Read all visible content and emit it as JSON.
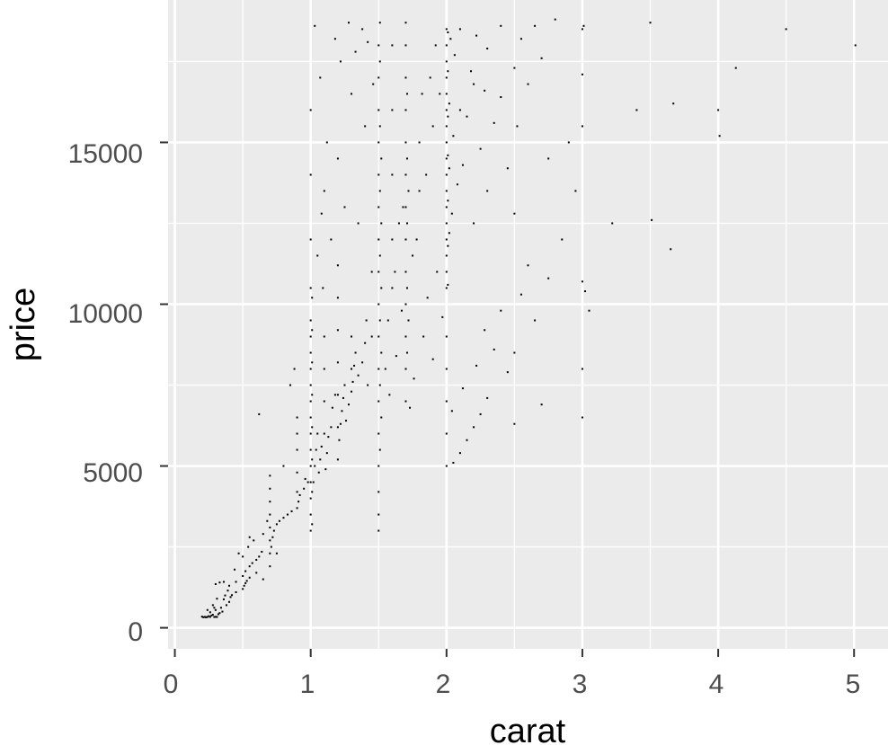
{
  "chart_data": {
    "type": "scatter",
    "title": "",
    "xlabel": "carat",
    "ylabel": "price",
    "xlim": [
      -0.05,
      5.25
    ],
    "ylim": [
      -650,
      19400
    ],
    "x_ticks": [
      0,
      1,
      2,
      3,
      4,
      5
    ],
    "x_tick_labels": [
      "0",
      "1",
      "2",
      "3",
      "4",
      "5"
    ],
    "y_ticks": [
      0,
      5000,
      10000,
      15000
    ],
    "y_tick_labels": [
      "0",
      "5000",
      "10000",
      "15000"
    ],
    "grid": true,
    "colors": {
      "panel": "#ebebeb",
      "grid": "#ffffff",
      "point": "#000000",
      "axis_text": "#4d4d4d"
    },
    "points": [
      [
        0.23,
        326
      ],
      [
        0.21,
        326
      ],
      [
        0.23,
        327
      ],
      [
        0.29,
        334
      ],
      [
        0.31,
        335
      ],
      [
        0.24,
        336
      ],
      [
        0.26,
        337
      ],
      [
        0.22,
        337
      ],
      [
        0.3,
        339
      ],
      [
        0.2,
        345
      ],
      [
        0.25,
        360
      ],
      [
        0.27,
        380
      ],
      [
        0.28,
        402
      ],
      [
        0.32,
        420
      ],
      [
        0.33,
        456
      ],
      [
        0.35,
        500
      ],
      [
        0.3,
        550
      ],
      [
        0.34,
        620
      ],
      [
        0.38,
        700
      ],
      [
        0.4,
        800
      ],
      [
        0.36,
        880
      ],
      [
        0.41,
        950
      ],
      [
        0.42,
        1010
      ],
      [
        0.45,
        1100
      ],
      [
        0.5,
        1200
      ],
      [
        0.51,
        1300
      ],
      [
        0.52,
        1380
      ],
      [
        0.53,
        1450
      ],
      [
        0.3,
        1350
      ],
      [
        0.33,
        1400
      ],
      [
        0.36,
        1420
      ],
      [
        0.4,
        1300
      ],
      [
        0.45,
        1420
      ],
      [
        0.31,
        900
      ],
      [
        0.28,
        700
      ],
      [
        0.24,
        550
      ],
      [
        0.26,
        480
      ],
      [
        0.29,
        620
      ],
      [
        0.37,
        1000
      ],
      [
        0.39,
        1150
      ],
      [
        0.5,
        1600
      ],
      [
        0.52,
        1750
      ],
      [
        0.55,
        1900
      ],
      [
        0.57,
        2000
      ],
      [
        0.6,
        2100
      ],
      [
        0.62,
        2200
      ],
      [
        0.64,
        2350
      ],
      [
        0.5,
        2200
      ],
      [
        0.54,
        2500
      ],
      [
        0.58,
        2700
      ],
      [
        0.55,
        1550
      ],
      [
        0.6,
        1700
      ],
      [
        0.65,
        1500
      ],
      [
        0.7,
        1900
      ],
      [
        0.7,
        2300
      ],
      [
        0.7,
        2700
      ],
      [
        0.7,
        3100
      ],
      [
        0.7,
        3500
      ],
      [
        0.7,
        3900
      ],
      [
        0.7,
        4300
      ],
      [
        0.7,
        4700
      ],
      [
        0.71,
        2500
      ],
      [
        0.72,
        2800
      ],
      [
        0.73,
        3000
      ],
      [
        0.75,
        3200
      ],
      [
        0.77,
        3300
      ],
      [
        0.8,
        3400
      ],
      [
        0.83,
        3500
      ],
      [
        0.86,
        3600
      ],
      [
        0.9,
        3700
      ],
      [
        0.9,
        4200
      ],
      [
        0.9,
        4800
      ],
      [
        0.9,
        5500
      ],
      [
        0.9,
        6000
      ],
      [
        0.9,
        6500
      ],
      [
        0.91,
        3900
      ],
      [
        0.92,
        4100
      ],
      [
        0.95,
        4300
      ],
      [
        0.96,
        4600
      ],
      [
        0.98,
        4500
      ],
      [
        0.62,
        6600
      ],
      [
        0.8,
        5000
      ],
      [
        0.85,
        7500
      ],
      [
        0.88,
        8000
      ],
      [
        0.55,
        2800
      ],
      [
        0.47,
        2300
      ],
      [
        0.44,
        1800
      ],
      [
        0.65,
        2900
      ],
      [
        0.68,
        3300
      ],
      [
        0.75,
        2300
      ],
      [
        1.0,
        3000
      ],
      [
        1.0,
        3500
      ],
      [
        1.0,
        4000
      ],
      [
        1.0,
        4500
      ],
      [
        1.0,
        5000
      ],
      [
        1.0,
        5500
      ],
      [
        1.0,
        6000
      ],
      [
        1.0,
        6500
      ],
      [
        1.0,
        7000
      ],
      [
        1.0,
        7500
      ],
      [
        1.0,
        8000
      ],
      [
        1.0,
        8500
      ],
      [
        1.0,
        9000
      ],
      [
        1.0,
        9500
      ],
      [
        1.0,
        10500
      ],
      [
        1.0,
        12000
      ],
      [
        1.0,
        14000
      ],
      [
        1.0,
        16000
      ],
      [
        1.01,
        3200
      ],
      [
        1.01,
        4200
      ],
      [
        1.01,
        5200
      ],
      [
        1.01,
        6200
      ],
      [
        1.01,
        7200
      ],
      [
        1.01,
        8200
      ],
      [
        1.01,
        9200
      ],
      [
        1.01,
        10200
      ],
      [
        1.02,
        4500
      ],
      [
        1.03,
        5000
      ],
      [
        1.04,
        5500
      ],
      [
        1.05,
        6000
      ],
      [
        1.06,
        4800
      ],
      [
        1.07,
        5200
      ],
      [
        1.08,
        5600
      ],
      [
        1.1,
        6000
      ],
      [
        1.1,
        7000
      ],
      [
        1.1,
        8000
      ],
      [
        1.1,
        9000
      ],
      [
        1.11,
        4900
      ],
      [
        1.12,
        5400
      ],
      [
        1.13,
        5900
      ],
      [
        1.15,
        6200
      ],
      [
        1.16,
        6800
      ],
      [
        1.18,
        7200
      ],
      [
        1.2,
        5200
      ],
      [
        1.2,
        6200
      ],
      [
        1.2,
        7200
      ],
      [
        1.2,
        8200
      ],
      [
        1.2,
        9200
      ],
      [
        1.2,
        10200
      ],
      [
        1.2,
        11200
      ],
      [
        1.21,
        5800
      ],
      [
        1.22,
        6300
      ],
      [
        1.23,
        6700
      ],
      [
        1.24,
        7100
      ],
      [
        1.25,
        7500
      ],
      [
        1.26,
        6400
      ],
      [
        1.28,
        6900
      ],
      [
        1.3,
        7300
      ],
      [
        1.3,
        8000
      ],
      [
        1.3,
        9000
      ],
      [
        1.31,
        7600
      ],
      [
        1.32,
        8100
      ],
      [
        1.33,
        8500
      ],
      [
        1.35,
        7800
      ],
      [
        1.38,
        8200
      ],
      [
        1.4,
        8800
      ],
      [
        1.41,
        9500
      ],
      [
        1.42,
        7500
      ],
      [
        1.45,
        9000
      ],
      [
        1.45,
        11000
      ],
      [
        1.05,
        11500
      ],
      [
        1.08,
        12800
      ],
      [
        1.1,
        13500
      ],
      [
        1.12,
        15000
      ],
      [
        1.15,
        12000
      ],
      [
        1.2,
        14500
      ],
      [
        1.25,
        13000
      ],
      [
        1.3,
        16500
      ],
      [
        1.35,
        12500
      ],
      [
        1.4,
        15500
      ],
      [
        1.03,
        18600
      ],
      [
        1.07,
        17000
      ],
      [
        1.18,
        18200
      ],
      [
        1.22,
        17500
      ],
      [
        1.28,
        18700
      ],
      [
        1.33,
        17800
      ],
      [
        1.38,
        18500
      ],
      [
        1.42,
        18100
      ],
      [
        1.46,
        16800
      ],
      [
        1.09,
        10500
      ],
      [
        1.5,
        5000
      ],
      [
        1.5,
        6000
      ],
      [
        1.5,
        7000
      ],
      [
        1.5,
        8000
      ],
      [
        1.5,
        9000
      ],
      [
        1.5,
        10000
      ],
      [
        1.5,
        11000
      ],
      [
        1.5,
        12000
      ],
      [
        1.5,
        13000
      ],
      [
        1.5,
        14000
      ],
      [
        1.5,
        15000
      ],
      [
        1.5,
        16000
      ],
      [
        1.5,
        17000
      ],
      [
        1.5,
        18000
      ],
      [
        1.51,
        5500
      ],
      [
        1.51,
        7500
      ],
      [
        1.51,
        9500
      ],
      [
        1.51,
        11500
      ],
      [
        1.51,
        13500
      ],
      [
        1.51,
        15500
      ],
      [
        1.51,
        17500
      ],
      [
        1.52,
        6500
      ],
      [
        1.52,
        8500
      ],
      [
        1.52,
        10500
      ],
      [
        1.52,
        12500
      ],
      [
        1.52,
        14500
      ],
      [
        1.5,
        3000
      ],
      [
        1.5,
        3500
      ],
      [
        1.5,
        4200
      ],
      [
        1.51,
        18700
      ],
      [
        1.55,
        8000
      ],
      [
        1.57,
        9500
      ],
      [
        1.6,
        10500
      ],
      [
        1.6,
        12000
      ],
      [
        1.6,
        14000
      ],
      [
        1.6,
        16000
      ],
      [
        1.6,
        18000
      ],
      [
        1.62,
        11000
      ],
      [
        1.65,
        12500
      ],
      [
        1.68,
        13000
      ],
      [
        1.7,
        7000
      ],
      [
        1.7,
        8000
      ],
      [
        1.7,
        9000
      ],
      [
        1.7,
        10000
      ],
      [
        1.7,
        11000
      ],
      [
        1.7,
        12000
      ],
      [
        1.7,
        13000
      ],
      [
        1.7,
        14000
      ],
      [
        1.7,
        15000
      ],
      [
        1.7,
        16000
      ],
      [
        1.7,
        17000
      ],
      [
        1.7,
        18000
      ],
      [
        1.7,
        18700
      ],
      [
        1.71,
        8500
      ],
      [
        1.71,
        10500
      ],
      [
        1.71,
        12500
      ],
      [
        1.71,
        14500
      ],
      [
        1.71,
        16500
      ],
      [
        1.72,
        9500
      ],
      [
        1.72,
        13500
      ],
      [
        1.75,
        11500
      ],
      [
        1.78,
        12000
      ],
      [
        1.8,
        13500
      ],
      [
        1.8,
        15000
      ],
      [
        1.82,
        16500
      ],
      [
        1.85,
        14000
      ],
      [
        1.88,
        17000
      ],
      [
        1.9,
        15500
      ],
      [
        1.92,
        18000
      ],
      [
        1.95,
        16500
      ],
      [
        1.58,
        7200
      ],
      [
        1.63,
        8400
      ],
      [
        1.67,
        9800
      ],
      [
        1.73,
        6800
      ],
      [
        1.76,
        7700
      ],
      [
        1.83,
        9000
      ],
      [
        1.86,
        10200
      ],
      [
        1.9,
        8300
      ],
      [
        1.93,
        11000
      ],
      [
        1.97,
        9600
      ],
      [
        2.0,
        5000
      ],
      [
        2.0,
        6000
      ],
      [
        2.0,
        7000
      ],
      [
        2.0,
        8000
      ],
      [
        2.0,
        9000
      ],
      [
        2.0,
        10500
      ],
      [
        2.0,
        11000
      ],
      [
        2.0,
        11500
      ],
      [
        2.0,
        12000
      ],
      [
        2.0,
        12500
      ],
      [
        2.0,
        13000
      ],
      [
        2.0,
        13500
      ],
      [
        2.0,
        14000
      ],
      [
        2.0,
        14500
      ],
      [
        2.0,
        15000
      ],
      [
        2.0,
        15500
      ],
      [
        2.0,
        16000
      ],
      [
        2.0,
        16500
      ],
      [
        2.0,
        17000
      ],
      [
        2.0,
        17500
      ],
      [
        2.0,
        18000
      ],
      [
        2.0,
        18500
      ],
      [
        2.01,
        10600
      ],
      [
        2.01,
        11800
      ],
      [
        2.01,
        13200
      ],
      [
        2.01,
        14600
      ],
      [
        2.01,
        15800
      ],
      [
        2.01,
        17200
      ],
      [
        2.01,
        18400
      ],
      [
        2.02,
        12200
      ],
      [
        2.02,
        14200
      ],
      [
        2.02,
        16200
      ],
      [
        2.03,
        18200
      ],
      [
        2.04,
        12800
      ],
      [
        2.05,
        15200
      ],
      [
        2.06,
        17700
      ],
      [
        2.08,
        13700
      ],
      [
        2.1,
        16000
      ],
      [
        2.1,
        18500
      ],
      [
        2.12,
        14300
      ],
      [
        2.15,
        15800
      ],
      [
        2.18,
        17200
      ],
      [
        2.2,
        12500
      ],
      [
        2.2,
        16800
      ],
      [
        2.22,
        18300
      ],
      [
        2.25,
        14800
      ],
      [
        2.28,
        16600
      ],
      [
        2.3,
        13500
      ],
      [
        2.3,
        17900
      ],
      [
        2.35,
        15600
      ],
      [
        2.4,
        16400
      ],
      [
        2.4,
        18600
      ],
      [
        2.45,
        14200
      ],
      [
        2.5,
        17300
      ],
      [
        2.5,
        12800
      ],
      [
        2.52,
        15500
      ],
      [
        2.55,
        18200
      ],
      [
        2.6,
        16800
      ],
      [
        2.65,
        18600
      ],
      [
        2.7,
        17600
      ],
      [
        2.05,
        5100
      ],
      [
        2.1,
        5400
      ],
      [
        2.15,
        5800
      ],
      [
        2.2,
        6200
      ],
      [
        2.25,
        6600
      ],
      [
        2.3,
        7100
      ],
      [
        2.04,
        6700
      ],
      [
        2.12,
        7400
      ],
      [
        2.22,
        8100
      ],
      [
        2.28,
        9200
      ],
      [
        2.35,
        8600
      ],
      [
        2.4,
        9800
      ],
      [
        2.45,
        7900
      ],
      [
        2.5,
        8500
      ],
      [
        2.55,
        10300
      ],
      [
        2.6,
        11200
      ],
      [
        2.5,
        6300
      ],
      [
        2.65,
        9500
      ],
      [
        2.7,
        6900
      ],
      [
        2.75,
        10800
      ],
      [
        2.8,
        18800
      ],
      [
        2.9,
        15000
      ],
      [
        3.0,
        18500
      ],
      [
        3.0,
        17100
      ],
      [
        3.0,
        15500
      ],
      [
        3.0,
        10700
      ],
      [
        3.0,
        8000
      ],
      [
        3.0,
        6500
      ],
      [
        3.01,
        18600
      ],
      [
        3.02,
        10400
      ],
      [
        3.05,
        9800
      ],
      [
        3.22,
        12500
      ],
      [
        3.4,
        16000
      ],
      [
        3.5,
        18700
      ],
      [
        3.51,
        12600
      ],
      [
        3.65,
        11700
      ],
      [
        3.67,
        16200
      ],
      [
        4.0,
        16000
      ],
      [
        4.01,
        15200
      ],
      [
        4.13,
        17300
      ],
      [
        4.5,
        18500
      ],
      [
        5.01,
        18000
      ],
      [
        2.85,
        12000
      ],
      [
        2.75,
        14500
      ],
      [
        2.95,
        13500
      ]
    ]
  }
}
